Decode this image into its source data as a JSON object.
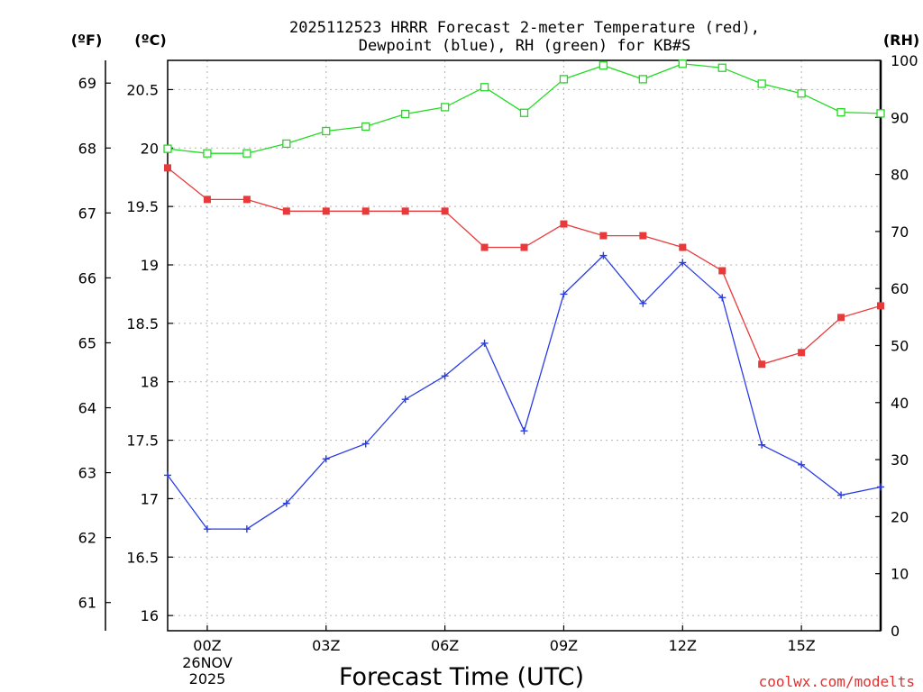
{
  "chart_data": {
    "type": "line",
    "title_line1": "2025112523 HRRR Forecast 2-meter Temperature (red),",
    "title_line2": "Dewpoint (blue), RH (green) for KB#S",
    "xlabel": "Forecast Time (UTC)",
    "credit": "coolwx.com/modelts",
    "date_labels": [
      "26NOV",
      "2025"
    ],
    "units": {
      "fahrenheit": "(ºF)",
      "celsius": "(ºC)",
      "rh": "(RH)"
    },
    "x_hours": [
      -1,
      0,
      1,
      2,
      3,
      4,
      5,
      6,
      7,
      8,
      9,
      10,
      11,
      12,
      13,
      14,
      15,
      16,
      17
    ],
    "x_range": [
      -1,
      17
    ],
    "x_ticks": [
      {
        "hour": 0,
        "label": "00Z"
      },
      {
        "hour": 3,
        "label": "03Z"
      },
      {
        "hour": 6,
        "label": "06Z"
      },
      {
        "hour": 9,
        "label": "09Z"
      },
      {
        "hour": 12,
        "label": "12Z"
      },
      {
        "hour": 15,
        "label": "15Z"
      }
    ],
    "celsius_range": [
      15.87,
      20.75
    ],
    "celsius_ticks": [
      "16",
      "16.5",
      "17",
      "17.5",
      "18",
      "18.5",
      "19",
      "19.5",
      "20",
      "20.5"
    ],
    "fahrenheit_ticks": [
      "61",
      "62",
      "63",
      "64",
      "65",
      "66",
      "67",
      "68",
      "69"
    ],
    "rh_range": [
      0,
      100
    ],
    "rh_ticks": [
      "0",
      "10",
      "20",
      "30",
      "40",
      "50",
      "60",
      "70",
      "80",
      "90",
      "100"
    ],
    "grid": true,
    "series": [
      {
        "name": "Temperature",
        "units": "C",
        "color": "#e83a3a",
        "marker": "filled-square",
        "values": [
          19.83,
          19.56,
          19.56,
          19.46,
          19.46,
          19.46,
          19.46,
          19.46,
          19.15,
          19.15,
          19.35,
          19.25,
          19.25,
          19.15,
          18.95,
          18.15,
          18.25,
          18.55,
          18.65
        ]
      },
      {
        "name": "Dewpoint",
        "units": "C",
        "color": "#2a3ce6",
        "marker": "plus",
        "values": [
          17.2,
          16.74,
          16.74,
          16.96,
          17.34,
          17.47,
          17.85,
          18.05,
          18.33,
          17.58,
          18.75,
          19.08,
          18.67,
          19.02,
          18.72,
          17.46,
          17.29,
          17.03,
          17.1
        ]
      },
      {
        "name": "RH",
        "units": "%",
        "color": "#21dc21",
        "marker": "open-square",
        "values": [
          84.5,
          83.7,
          83.7,
          85.4,
          87.6,
          88.4,
          90.6,
          91.8,
          95.3,
          90.8,
          96.7,
          99.1,
          96.7,
          99.4,
          98.7,
          95.9,
          94.2,
          90.9,
          90.7
        ]
      }
    ]
  }
}
